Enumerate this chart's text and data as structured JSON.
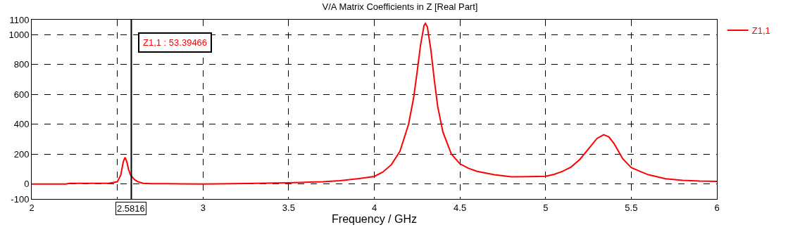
{
  "chart_data": {
    "type": "line",
    "title": "V/A Matrix Coefficients in Z [Real Part]",
    "xlabel": "Frequency / GHz",
    "series": [
      {
        "name": "Z1,1",
        "color": "#ff0000",
        "x": [
          2.0,
          2.2,
          2.22,
          2.4,
          2.45,
          2.5,
          2.52,
          2.535,
          2.545,
          2.555,
          2.565,
          2.575,
          2.5816,
          2.6,
          2.62,
          2.65,
          2.7,
          2.8,
          3.0,
          3.25,
          3.5,
          3.7,
          3.8,
          3.9,
          4.0,
          4.05,
          4.1,
          4.15,
          4.2,
          4.23,
          4.25,
          4.27,
          4.29,
          4.298,
          4.31,
          4.33,
          4.35,
          4.37,
          4.4,
          4.45,
          4.5,
          4.55,
          4.6,
          4.7,
          4.8,
          4.9,
          5.0,
          5.05,
          5.1,
          5.15,
          5.2,
          5.25,
          5.3,
          5.339,
          5.37,
          5.4,
          5.45,
          5.5,
          5.55,
          5.6,
          5.7,
          5.8,
          5.9,
          6.0
        ],
        "values": [
          0,
          0,
          5,
          5,
          5,
          15,
          60,
          150,
          178,
          150,
          100,
          65,
          53,
          30,
          15,
          5,
          2,
          2,
          0,
          3,
          8,
          15,
          22,
          35,
          51,
          80,
          130,
          220,
          400,
          580,
          750,
          930,
          1060,
          1075,
          1050,
          900,
          700,
          520,
          350,
          200,
          135,
          105,
          85,
          62,
          48,
          50,
          52,
          65,
          85,
          115,
          165,
          235,
          305,
          330,
          315,
          270,
          170,
          110,
          85,
          62,
          35,
          25,
          20,
          18
        ]
      }
    ],
    "xlim": [
      2,
      6
    ],
    "xticks": [
      2,
      {
        "value": 2.5,
        "label": null
      },
      3,
      3.5,
      4,
      4.5,
      5,
      5.5,
      6
    ],
    "ylim": [
      -100,
      1100
    ],
    "yticks": [
      -100,
      0,
      200,
      400,
      600,
      800,
      1000,
      1100
    ],
    "grid": true,
    "legend": "top right",
    "marker": "none",
    "line_style": "solid",
    "ref_lines": [
      {
        "axis": "x",
        "value": 2.5816,
        "label": "2.5816",
        "color": "#000000",
        "line_style": "solid"
      }
    ],
    "annotations": [
      "Z1,1 : 53.39466"
    ]
  }
}
